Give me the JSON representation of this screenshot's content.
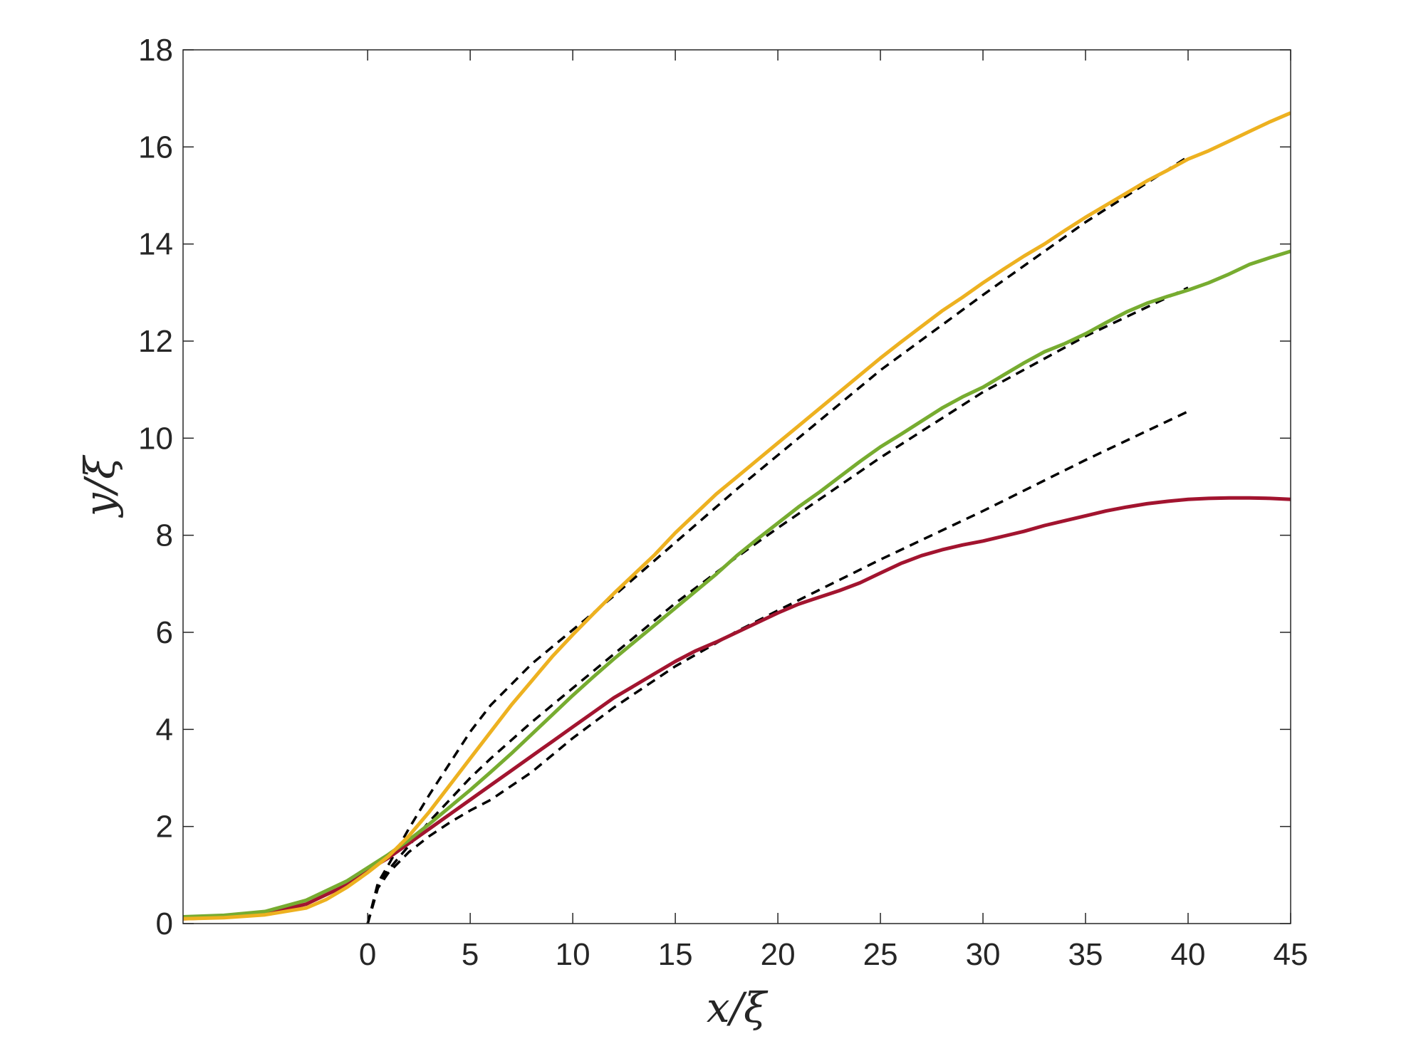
{
  "chart_data": {
    "type": "line",
    "xlabel": "x/ξ",
    "ylabel": "y/ξ",
    "xlim": [
      -9,
      45
    ],
    "ylim": [
      0,
      18
    ],
    "xticks": [
      0,
      5,
      10,
      15,
      20,
      25,
      30,
      35,
      40,
      45
    ],
    "yticks": [
      0,
      2,
      4,
      6,
      8,
      10,
      12,
      14,
      16,
      18
    ],
    "grid": false,
    "legend": "none",
    "colors": {
      "orange": "#EDB120",
      "green": "#77AC30",
      "red": "#A2142F",
      "fit": "#000000"
    },
    "series": [
      {
        "color": "#A2142F",
        "style": "solid",
        "x": [
          -9,
          -7,
          -5,
          -3,
          -1,
          0,
          1,
          2,
          3,
          4,
          5,
          6,
          7,
          8,
          9,
          10,
          11,
          12,
          13,
          14,
          15,
          16,
          17,
          18,
          19,
          20,
          21,
          22,
          23,
          24,
          25,
          26,
          27,
          28,
          29,
          30,
          31,
          32,
          33,
          34,
          35,
          36,
          37,
          38,
          39,
          40,
          41,
          42,
          43,
          44,
          45
        ],
        "y": [
          0.1,
          0.13,
          0.2,
          0.4,
          0.8,
          1.1,
          1.35,
          1.65,
          1.95,
          2.25,
          2.55,
          2.85,
          3.15,
          3.45,
          3.75,
          4.05,
          4.35,
          4.65,
          4.9,
          5.15,
          5.4,
          5.62,
          5.8,
          6.0,
          6.2,
          6.4,
          6.58,
          6.72,
          6.86,
          7.02,
          7.22,
          7.42,
          7.58,
          7.7,
          7.8,
          7.88,
          7.98,
          8.08,
          8.2,
          8.3,
          8.4,
          8.5,
          8.58,
          8.65,
          8.7,
          8.74,
          8.76,
          8.77,
          8.77,
          8.76,
          8.74
        ]
      },
      {
        "color": "#77AC30",
        "style": "solid",
        "x": [
          -9,
          -7,
          -5,
          -3,
          -1,
          0,
          1,
          2,
          3,
          4,
          5,
          6,
          7,
          8,
          9,
          10,
          11,
          12,
          13,
          14,
          15,
          16,
          17,
          18,
          19,
          20,
          21,
          22,
          23,
          24,
          25,
          26,
          27,
          28,
          29,
          30,
          31,
          32,
          33,
          34,
          35,
          36,
          37,
          38,
          39,
          40,
          41,
          42,
          43,
          44,
          45
        ],
        "y": [
          0.14,
          0.17,
          0.25,
          0.48,
          0.88,
          1.15,
          1.42,
          1.72,
          2.05,
          2.4,
          2.75,
          3.12,
          3.5,
          3.9,
          4.3,
          4.7,
          5.08,
          5.45,
          5.8,
          6.15,
          6.5,
          6.85,
          7.2,
          7.58,
          7.92,
          8.25,
          8.58,
          8.88,
          9.2,
          9.52,
          9.82,
          10.08,
          10.35,
          10.62,
          10.85,
          11.05,
          11.3,
          11.55,
          11.78,
          11.95,
          12.15,
          12.38,
          12.6,
          12.78,
          12.92,
          13.05,
          13.2,
          13.38,
          13.58,
          13.72,
          13.85
        ]
      },
      {
        "color": "#EDB120",
        "style": "solid",
        "x": [
          -9,
          -7,
          -5,
          -3,
          -2,
          -1,
          0,
          1,
          2,
          3,
          4,
          5,
          6,
          7,
          8,
          9,
          10,
          11,
          12,
          13,
          14,
          15,
          16,
          17,
          18,
          19,
          20,
          21,
          22,
          23,
          24,
          25,
          26,
          27,
          28,
          29,
          30,
          31,
          32,
          33,
          34,
          35,
          36,
          37,
          38,
          39,
          40,
          41,
          42,
          43,
          44,
          45
        ],
        "y": [
          0.1,
          0.12,
          0.18,
          0.32,
          0.5,
          0.75,
          1.05,
          1.38,
          1.8,
          2.3,
          2.85,
          3.4,
          3.95,
          4.5,
          5.0,
          5.5,
          5.95,
          6.38,
          6.8,
          7.2,
          7.6,
          8.05,
          8.45,
          8.85,
          9.2,
          9.55,
          9.9,
          10.25,
          10.6,
          10.95,
          11.3,
          11.65,
          11.98,
          12.3,
          12.62,
          12.9,
          13.2,
          13.48,
          13.75,
          14.0,
          14.28,
          14.55,
          14.8,
          15.05,
          15.3,
          15.52,
          15.75,
          15.92,
          16.12,
          16.32,
          16.52,
          16.7
        ]
      },
      {
        "color": "#000000",
        "style": "dashed",
        "x": [
          0,
          0.5,
          1,
          2,
          3,
          4,
          5,
          6,
          8,
          10,
          12,
          15,
          18,
          20,
          25,
          30,
          35,
          40
        ],
        "y": [
          0,
          0.73,
          1.04,
          1.47,
          1.8,
          2.08,
          2.33,
          2.55,
          3.12,
          3.82,
          4.45,
          5.3,
          6.02,
          6.45,
          7.5,
          8.5,
          9.55,
          10.55
        ]
      },
      {
        "color": "#000000",
        "style": "dashed",
        "x": [
          0,
          0.5,
          1,
          2,
          3,
          4,
          5,
          6,
          8,
          10,
          12,
          15,
          18,
          20,
          25,
          30,
          35,
          40
        ],
        "y": [
          0,
          0.78,
          1.1,
          1.6,
          2.1,
          2.55,
          3.0,
          3.4,
          4.15,
          4.85,
          5.55,
          6.6,
          7.55,
          8.15,
          9.6,
          10.95,
          12.1,
          13.1
        ]
      },
      {
        "color": "#000000",
        "style": "dashed",
        "x": [
          0,
          0.5,
          1,
          2,
          3,
          4,
          5,
          6,
          8,
          10,
          12,
          15,
          18,
          20,
          25,
          30,
          35,
          40
        ],
        "y": [
          0,
          0.84,
          1.2,
          1.95,
          2.65,
          3.3,
          3.95,
          4.5,
          5.35,
          6.05,
          6.75,
          7.85,
          8.95,
          9.65,
          11.4,
          12.95,
          14.45,
          15.8
        ]
      }
    ]
  }
}
